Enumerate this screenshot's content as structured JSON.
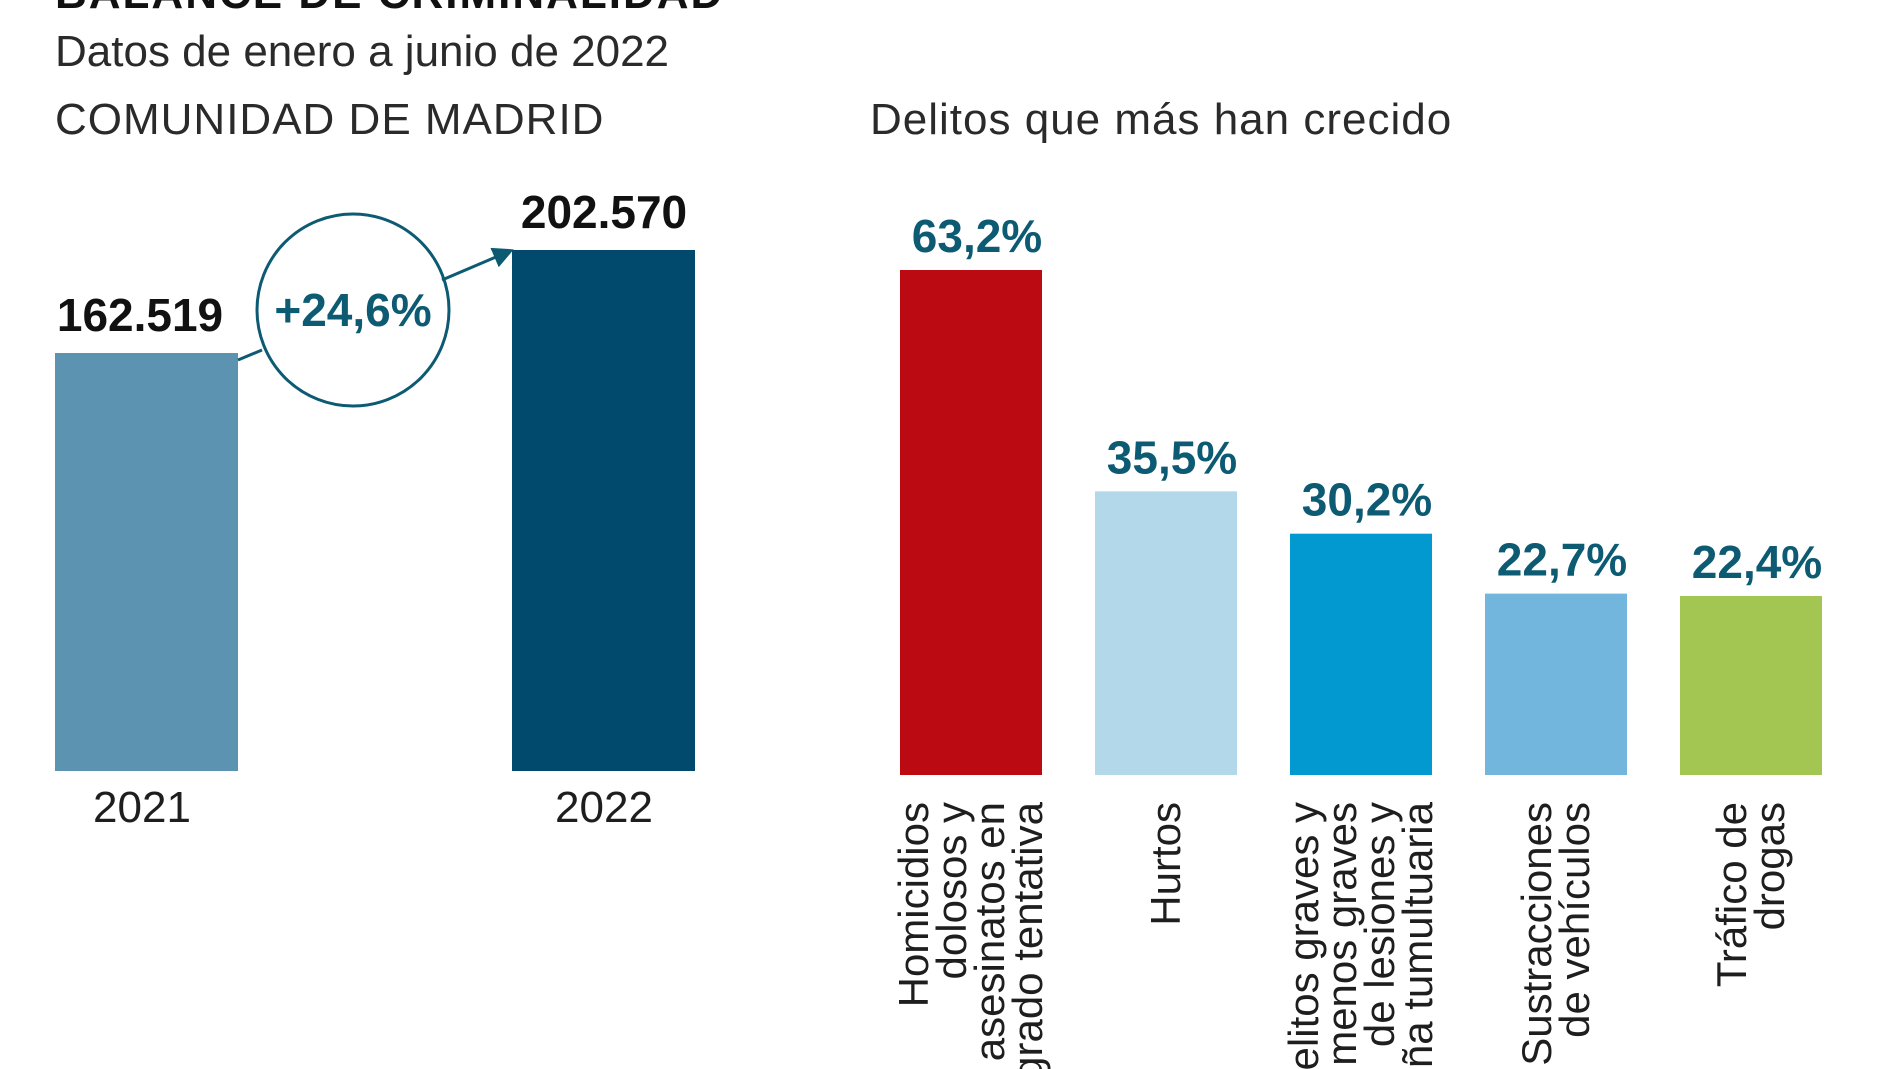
{
  "header": {
    "title": "BALANCE DE CRIMINALIDAD",
    "subtitle": "Datos de enero a junio de 2022"
  },
  "left_panel": {
    "heading": "COMUNIDAD DE MADRID"
  },
  "right_panel": {
    "heading": "Delitos que más han crecido"
  },
  "colors": {
    "bar_2021": "#5b93b1",
    "bar_2022": "#024a6d",
    "accent_text": "#0d5a73",
    "homicidios": "#bb0a11",
    "hurtos": "#b3d8ea",
    "lesiones": "#0199cf",
    "sustracciones": "#72b6de",
    "trafico": "#a3c652"
  },
  "chart_data": [
    {
      "type": "bar",
      "title": "COMUNIDAD DE MADRID",
      "categories": [
        "2021",
        "2022"
      ],
      "values": [
        162519,
        202570
      ],
      "value_labels": [
        "162.519",
        "202.570"
      ],
      "change_label": "+24,6%",
      "ylim": [
        0,
        202570
      ]
    },
    {
      "type": "bar",
      "title": "Delitos que más han crecido",
      "categories": [
        [
          "Homicidios",
          "dolosos y",
          "asesinatos en",
          "grado tentativa"
        ],
        [
          "Hurtos"
        ],
        [
          "Delitos graves y",
          "menos graves",
          "de lesiones y",
          "riña tumultuaria"
        ],
        [
          "Sustracciones",
          "de vehículos"
        ],
        [
          "Tráfico de",
          "drogas"
        ]
      ],
      "values": [
        63.2,
        35.5,
        30.2,
        22.7,
        22.4
      ],
      "value_labels": [
        "63,2%",
        "35,5%",
        "30,2%",
        "22,7%",
        "22,4%"
      ],
      "ylim": [
        0,
        63.2
      ]
    }
  ]
}
